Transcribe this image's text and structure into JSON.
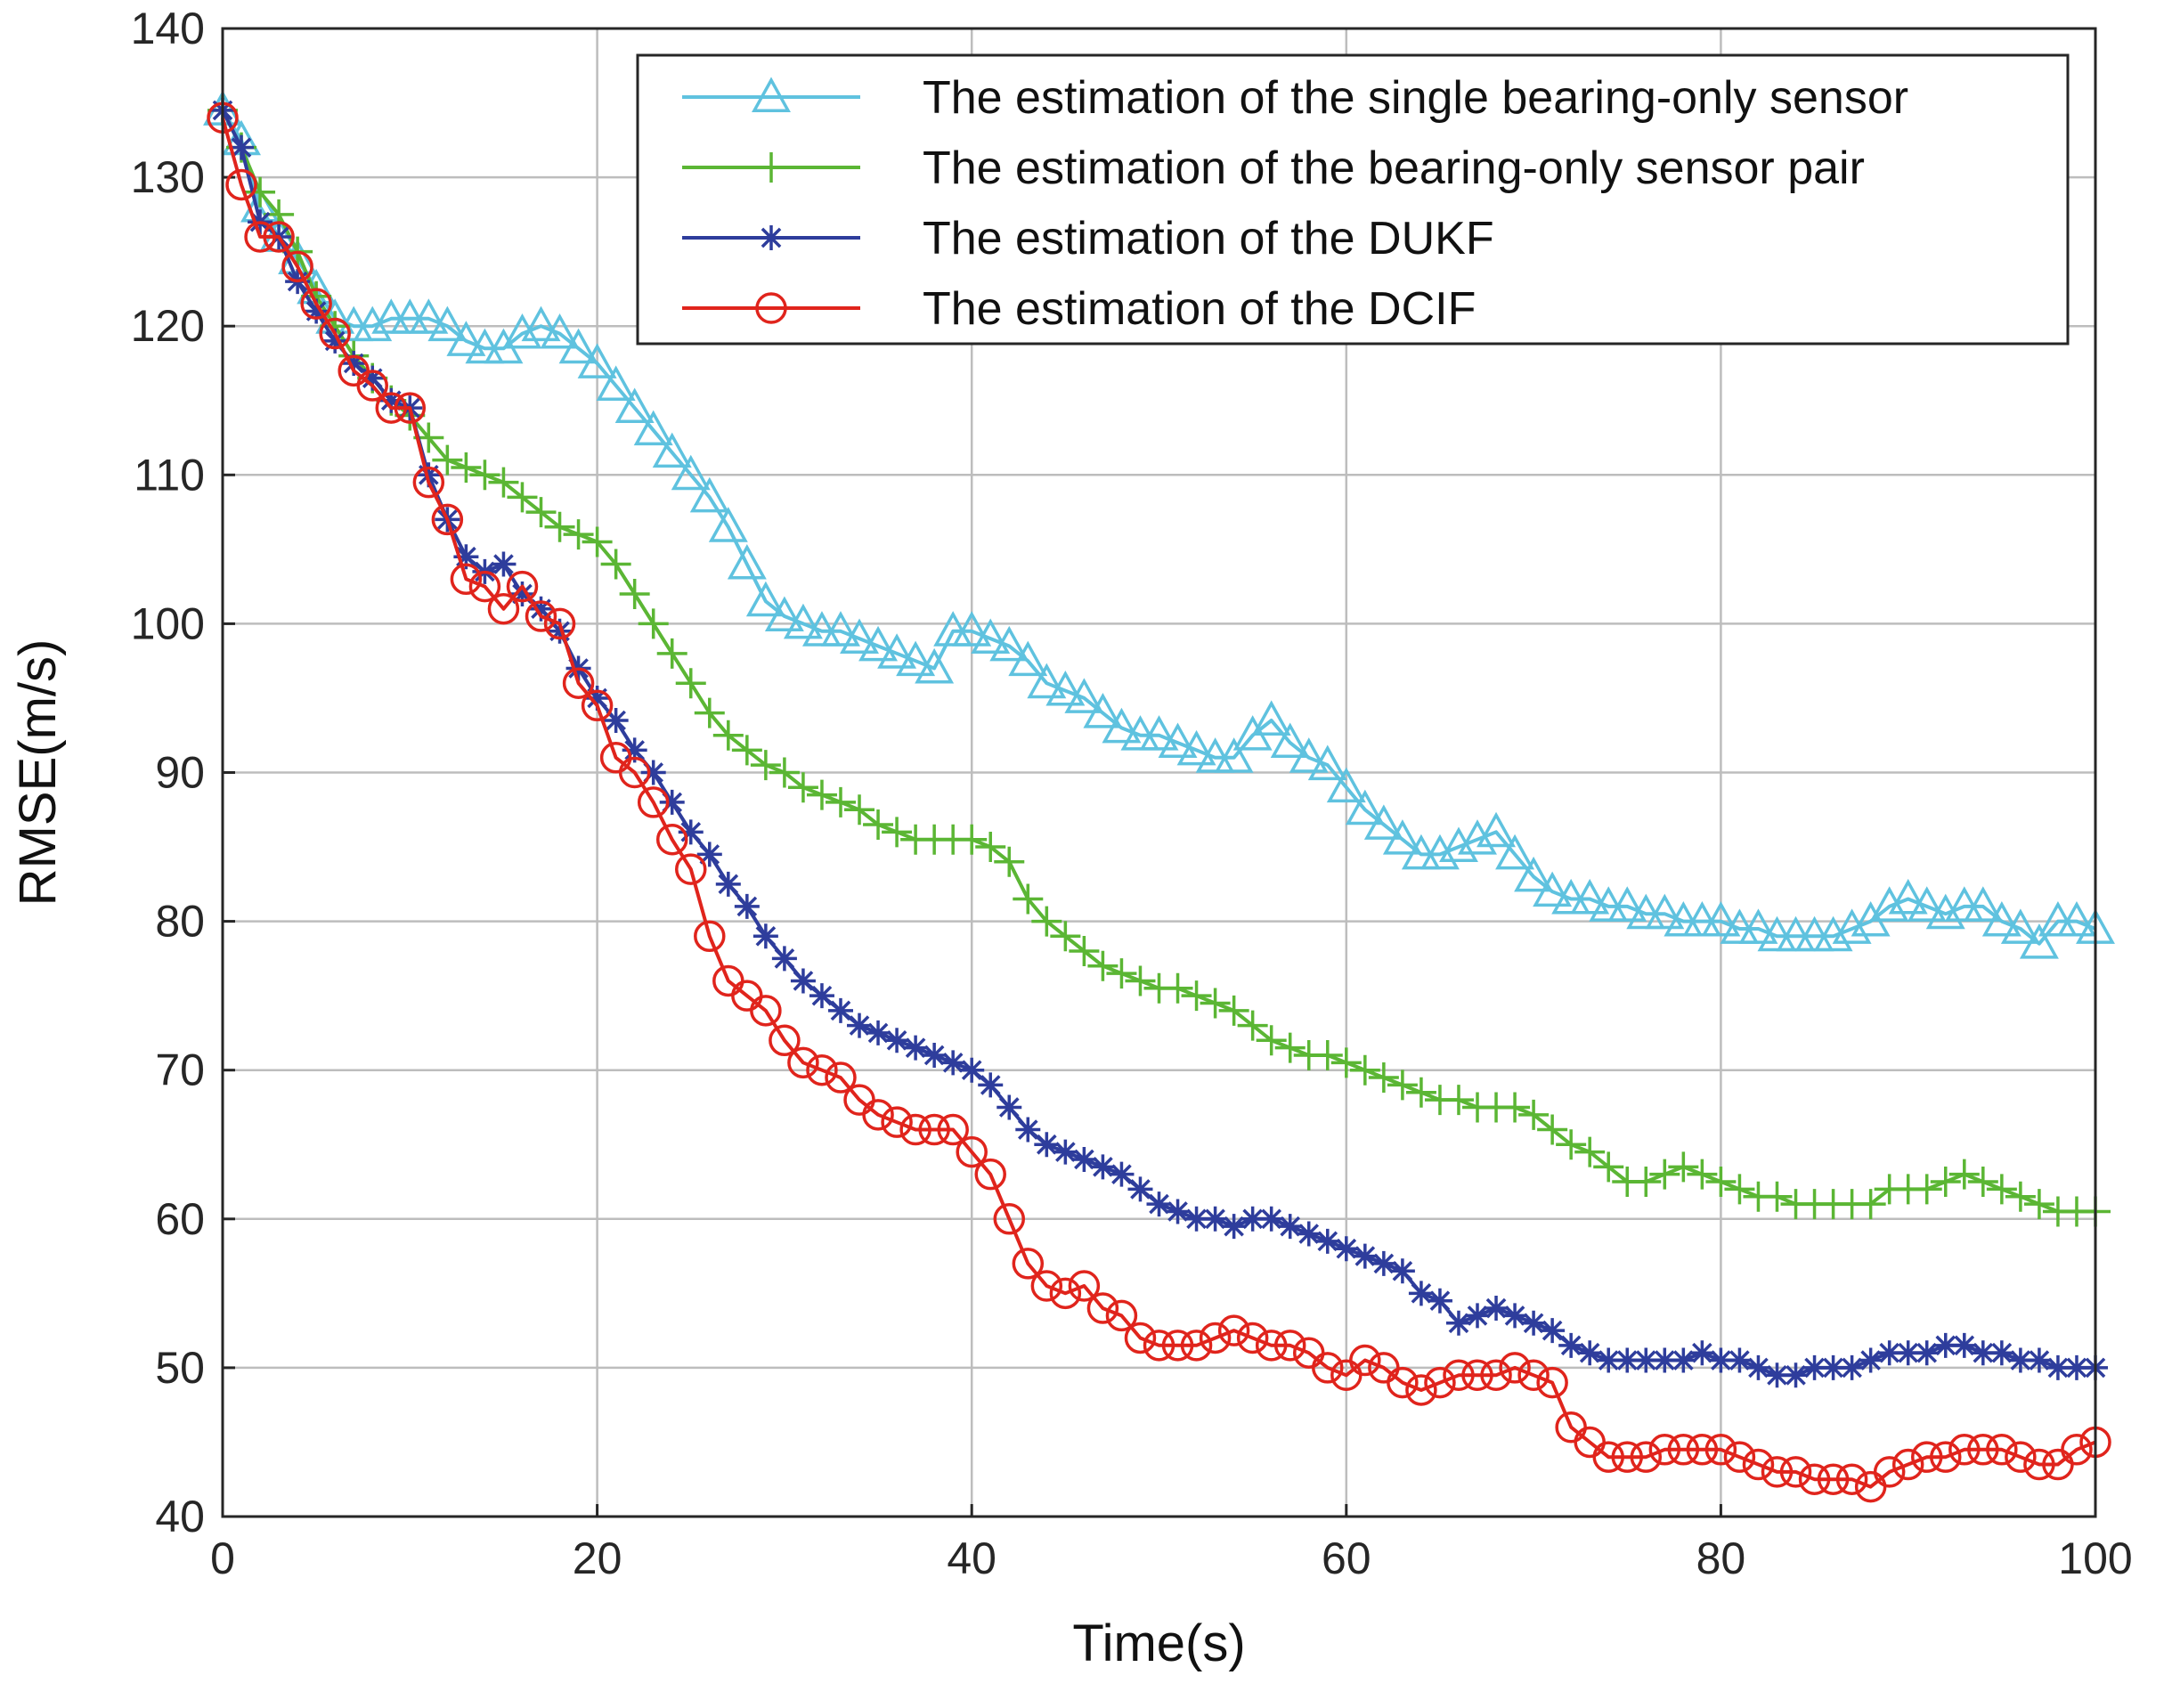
{
  "chart_data": {
    "type": "line",
    "title": "",
    "xlabel": "Time(s)",
    "ylabel": "RMSE(m/s)",
    "xlim": [
      0,
      100
    ],
    "ylim": [
      40,
      140
    ],
    "xticks": [
      0,
      20,
      40,
      60,
      80,
      100
    ],
    "yticks": [
      40,
      50,
      60,
      70,
      80,
      90,
      100,
      110,
      120,
      130,
      140
    ],
    "grid": true,
    "legend_position": "top-right",
    "x_step": 1,
    "x_start": 0,
    "series": [
      {
        "name": "The estimation of the single bearing-only sensor",
        "color": "#5fc2df",
        "marker": "triangle",
        "values": [
          134.5,
          132.5,
          128,
          126,
          124.5,
          122.5,
          120.5,
          120,
          120,
          120.5,
          120.5,
          120.5,
          120,
          119,
          118.5,
          118.5,
          119.5,
          120,
          119.5,
          118.5,
          117.5,
          116,
          114.5,
          113,
          111.5,
          110,
          108.5,
          106.5,
          104,
          101.5,
          100.5,
          100,
          99.5,
          99.5,
          99,
          98.5,
          98,
          97.5,
          97,
          99.5,
          99.5,
          99,
          98.5,
          97.5,
          96,
          95.5,
          95,
          94,
          93,
          92.5,
          92.5,
          92,
          91.5,
          91,
          91,
          92.5,
          93.5,
          92,
          91,
          90.5,
          89,
          87.5,
          86.5,
          85.5,
          84.5,
          84.5,
          85,
          85.5,
          86,
          84.5,
          83,
          82,
          81.5,
          81.5,
          81,
          81,
          80.5,
          80.5,
          80,
          80,
          80,
          79.5,
          79.5,
          79,
          79,
          79,
          79,
          79.5,
          80,
          81,
          81.5,
          81,
          80.5,
          81,
          81,
          80,
          79.5,
          78.5,
          80,
          80,
          79.5
        ]
      },
      {
        "name": "The estimation of the bearing-only sensor pair",
        "color": "#5bb634",
        "marker": "plus",
        "values": [
          134.5,
          132,
          129,
          127.5,
          125,
          122,
          120,
          118,
          116.5,
          115,
          114,
          112.5,
          111,
          110.5,
          110,
          109.5,
          108.5,
          107.5,
          106.5,
          106,
          105.5,
          104,
          102,
          100,
          98,
          96,
          94,
          92.5,
          91.5,
          90.5,
          90,
          89,
          88.5,
          88,
          87.5,
          86.5,
          86,
          85.5,
          85.5,
          85.5,
          85.5,
          85,
          84,
          81.5,
          80,
          79,
          78,
          77,
          76.5,
          76,
          75.5,
          75.5,
          75,
          74.5,
          74,
          73,
          72,
          71.5,
          71,
          71,
          70.5,
          70,
          69.5,
          69,
          68.5,
          68,
          68,
          67.5,
          67.5,
          67.5,
          67,
          66,
          65,
          64.5,
          63.5,
          62.5,
          62.5,
          63,
          63.5,
          63,
          62.5,
          62,
          61.5,
          61.5,
          61,
          61,
          61,
          61,
          61,
          62,
          62,
          62,
          62.5,
          63,
          62.5,
          62,
          61.5,
          61,
          60.5,
          60.5,
          60.5
        ]
      },
      {
        "name": "The estimation of the DUKF",
        "color": "#2e3d9c",
        "marker": "star",
        "values": [
          134.5,
          132,
          127,
          126,
          123,
          121,
          119,
          117.5,
          116.5,
          115,
          114.5,
          110,
          107,
          104.5,
          103.5,
          104,
          102,
          101,
          99.5,
          97,
          95,
          93.5,
          91.5,
          90,
          88,
          86,
          84.5,
          82.5,
          81,
          79,
          77.5,
          76,
          75,
          74,
          73,
          72.5,
          72,
          71.5,
          71,
          70.5,
          70,
          69,
          67.5,
          66,
          65,
          64.5,
          64,
          63.5,
          63,
          62,
          61,
          60.5,
          60,
          60,
          59.5,
          60,
          60,
          59.5,
          59,
          58.5,
          58,
          57.5,
          57,
          56.5,
          55,
          54.5,
          53,
          53.5,
          54,
          53.5,
          53,
          52.5,
          51.5,
          51,
          50.5,
          50.5,
          50.5,
          50.5,
          50.5,
          51,
          50.5,
          50.5,
          50,
          49.5,
          49.5,
          50,
          50,
          50,
          50.5,
          51,
          51,
          51,
          51.5,
          51.5,
          51,
          51,
          50.5,
          50.5,
          50,
          50,
          50
        ]
      },
      {
        "name": "The estimation of the DCIF",
        "color": "#e0241c",
        "marker": "circle",
        "values": [
          134,
          129.5,
          126,
          126,
          124,
          121.5,
          119.5,
          117,
          116,
          114.5,
          114.5,
          109.5,
          107,
          103,
          102.5,
          101,
          102.5,
          100.5,
          100,
          96,
          94.5,
          91,
          90,
          88,
          85.5,
          83.5,
          79,
          76,
          75,
          74,
          72,
          70.5,
          70,
          69.5,
          68,
          67,
          66.5,
          66,
          66,
          66,
          64.5,
          63,
          60,
          57,
          55.5,
          55,
          55.5,
          54,
          53.5,
          52,
          51.5,
          51.5,
          51.5,
          52,
          52.5,
          52,
          51.5,
          51.5,
          51,
          50,
          49.5,
          50.5,
          50,
          49,
          48.5,
          49,
          49.5,
          49.5,
          49.5,
          50,
          49.5,
          49,
          46,
          45,
          44,
          44,
          44,
          44.5,
          44.5,
          44.5,
          44.5,
          44,
          43.5,
          43,
          43,
          42.5,
          42.5,
          42.5,
          42,
          43,
          43.5,
          44,
          44,
          44.5,
          44.5,
          44.5,
          44,
          43.5,
          43.5,
          44.5,
          45
        ]
      }
    ]
  }
}
